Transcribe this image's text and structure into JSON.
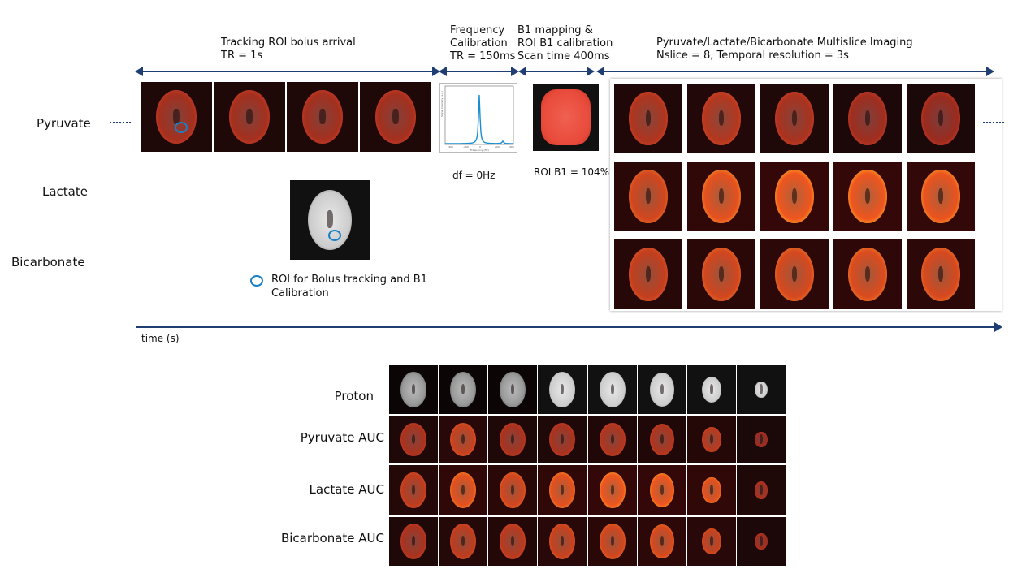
{
  "phases": [
    {
      "title": "Tracking ROI bolus arrival",
      "sub": "TR = 1s"
    },
    {
      "title": "Frequency",
      "title2": "Calibration",
      "sub": "TR = 150ms"
    },
    {
      "title": "B1 mapping &",
      "title2": "ROI B1 calibration",
      "sub": "Scan time 400ms"
    },
    {
      "title": "Pyruvate/Lactate/Bicarbonate Multislice Imaging",
      "sub": "Nslice = 8, Temporal resolution = 3s"
    }
  ],
  "rows": [
    "Pyruvate",
    "Lactate",
    "Bicarbonate"
  ],
  "df_label": "df = 0Hz",
  "b1_label": "ROI B1 = 104%",
  "roi_legend": {
    "line1": "ROI for Bolus tracking and B1",
    "line2": "Calibration"
  },
  "time_label": "time (s)",
  "spectrum": {
    "xlabel": "Frequency (Hz)",
    "ylabel": "Signal Intensity (a.u.)",
    "xticks": [
      "-400",
      "-200",
      "0",
      "200",
      "400"
    ]
  },
  "auc_rows": [
    "Proton",
    "Pyruvate AUC",
    "Lactate AUC",
    "Bicarbonate AUC"
  ],
  "colors": {
    "arrow": "#1f3f74",
    "roi": "#1a7fc4",
    "spectrum": "#1a8fd0"
  }
}
